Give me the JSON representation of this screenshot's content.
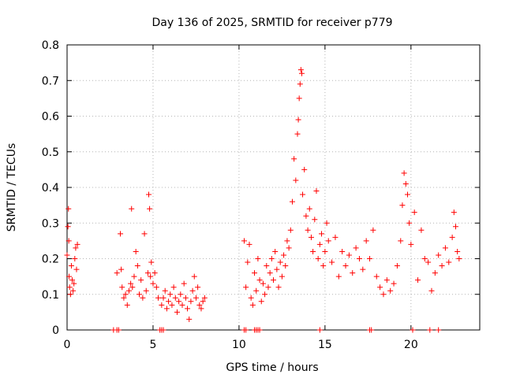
{
  "chart_data": {
    "type": "scatter",
    "title": "Day 136 of 2025, SRMTID for receiver p779",
    "xlabel": "GPS time / hours",
    "ylabel": "SRMTID / TECUs",
    "xlim": [
      0,
      24
    ],
    "ylim": [
      0,
      0.8
    ],
    "xticks": [
      0,
      5,
      10,
      15,
      20
    ],
    "yticks": [
      0,
      0.1,
      0.2,
      0.3,
      0.4,
      0.5,
      0.6,
      0.7,
      0.8
    ],
    "xtick_labels": [
      "0",
      "5",
      "10",
      "15",
      "20"
    ],
    "ytick_labels": [
      "0",
      "0.1",
      "0.2",
      "0.3",
      "0.4",
      "0.5",
      "0.6",
      "0.7",
      "0.8"
    ],
    "grid": true,
    "marker": "+",
    "color": "#ff0000",
    "series": [
      {
        "name": "SRMTID",
        "x": [
          0.0,
          0.05,
          0.08,
          0.1,
          0.12,
          0.15,
          0.2,
          0.25,
          0.3,
          0.35,
          0.4,
          0.45,
          0.5,
          0.55,
          0.6,
          2.9,
          3.1,
          3.15,
          3.2,
          3.3,
          3.4,
          3.5,
          3.6,
          3.7,
          3.75,
          3.8,
          3.9,
          4.0,
          4.1,
          4.2,
          4.3,
          4.4,
          4.5,
          4.6,
          4.7,
          4.75,
          4.8,
          4.85,
          4.9,
          5.0,
          5.1,
          5.2,
          5.3,
          5.5,
          5.6,
          5.7,
          5.8,
          5.9,
          6.0,
          6.1,
          6.2,
          6.3,
          6.4,
          6.5,
          6.6,
          6.7,
          6.8,
          6.9,
          7.0,
          7.1,
          7.2,
          7.3,
          7.4,
          7.5,
          7.6,
          7.7,
          7.8,
          7.9,
          8.0,
          10.3,
          10.4,
          10.5,
          10.6,
          10.7,
          10.8,
          10.9,
          11.0,
          11.1,
          11.2,
          11.3,
          11.4,
          11.5,
          11.6,
          11.7,
          11.8,
          11.9,
          12.0,
          12.1,
          12.2,
          12.3,
          12.4,
          12.5,
          12.6,
          12.7,
          12.8,
          12.9,
          13.0,
          13.1,
          13.2,
          13.3,
          13.4,
          13.45,
          13.5,
          13.55,
          13.6,
          13.65,
          13.7,
          13.8,
          13.9,
          14.0,
          14.1,
          14.2,
          14.3,
          14.4,
          14.5,
          14.6,
          14.7,
          14.8,
          14.9,
          15.0,
          15.1,
          15.2,
          15.4,
          15.6,
          15.8,
          16.0,
          16.2,
          16.4,
          16.6,
          16.8,
          17.0,
          17.2,
          17.4,
          17.6,
          17.8,
          18.0,
          18.2,
          18.4,
          18.6,
          18.8,
          19.0,
          19.2,
          19.4,
          19.5,
          19.6,
          19.7,
          19.8,
          19.9,
          20.0,
          20.2,
          20.4,
          20.6,
          20.8,
          21.0,
          21.2,
          21.4,
          21.6,
          21.8,
          22.0,
          22.2,
          22.4,
          22.5,
          22.6,
          22.7,
          22.8,
          2.7,
          2.9,
          3.0,
          5.4,
          5.5,
          5.6,
          10.3,
          10.4,
          10.9,
          11.0,
          11.1,
          11.2,
          14.7,
          17.6,
          17.7,
          20.1,
          21.1,
          21.6
        ],
        "y": [
          0.21,
          0.29,
          0.34,
          0.25,
          0.15,
          0.12,
          0.1,
          0.18,
          0.14,
          0.11,
          0.13,
          0.2,
          0.23,
          0.17,
          0.24,
          0.16,
          0.27,
          0.17,
          0.12,
          0.09,
          0.1,
          0.07,
          0.11,
          0.13,
          0.34,
          0.12,
          0.15,
          0.22,
          0.18,
          0.1,
          0.14,
          0.09,
          0.27,
          0.11,
          0.16,
          0.38,
          0.34,
          0.15,
          0.19,
          0.13,
          0.16,
          0.12,
          0.09,
          0.07,
          0.09,
          0.11,
          0.06,
          0.08,
          0.1,
          0.07,
          0.12,
          0.09,
          0.05,
          0.08,
          0.1,
          0.07,
          0.13,
          0.09,
          0.06,
          0.03,
          0.08,
          0.11,
          0.15,
          0.09,
          0.12,
          0.07,
          0.06,
          0.08,
          0.09,
          0.25,
          0.12,
          0.19,
          0.24,
          0.09,
          0.07,
          0.16,
          0.11,
          0.2,
          0.14,
          0.08,
          0.13,
          0.1,
          0.18,
          0.12,
          0.16,
          0.2,
          0.14,
          0.22,
          0.17,
          0.12,
          0.19,
          0.15,
          0.21,
          0.18,
          0.25,
          0.23,
          0.28,
          0.36,
          0.48,
          0.42,
          0.55,
          0.59,
          0.65,
          0.69,
          0.73,
          0.72,
          0.38,
          0.45,
          0.32,
          0.28,
          0.34,
          0.26,
          0.22,
          0.31,
          0.39,
          0.2,
          0.24,
          0.27,
          0.18,
          0.22,
          0.3,
          0.25,
          0.19,
          0.26,
          0.15,
          0.22,
          0.18,
          0.21,
          0.16,
          0.23,
          0.2,
          0.17,
          0.25,
          0.2,
          0.28,
          0.15,
          0.12,
          0.1,
          0.14,
          0.11,
          0.13,
          0.18,
          0.25,
          0.35,
          0.44,
          0.41,
          0.38,
          0.3,
          0.24,
          0.33,
          0.14,
          0.28,
          0.2,
          0.19,
          0.11,
          0.16,
          0.21,
          0.18,
          0.23,
          0.19,
          0.26,
          0.33,
          0.29,
          0.22,
          0.2,
          0.0,
          0.0,
          0.0,
          0.0,
          0.0,
          0.0,
          0.0,
          0.0,
          0.0,
          0.0,
          0.0,
          0.0,
          0.0,
          0.0,
          0.0,
          0.0,
          0.0,
          0.0
        ]
      }
    ]
  }
}
